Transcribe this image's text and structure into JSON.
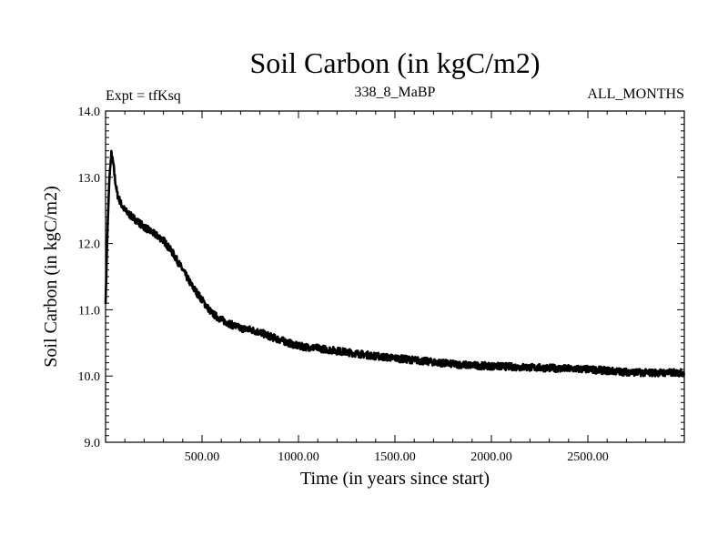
{
  "chart_data": {
    "type": "line",
    "title": "Soil Carbon (in kgC/m2)",
    "subtitle_left": "Expt = tfKsq",
    "subtitle_center": "338_8_MaBP",
    "subtitle_right": "ALL_MONTHS",
    "xlabel": "Time (in years since start)",
    "ylabel": "Soil Carbon (in kgC/m2)",
    "xlim": [
      0,
      3000
    ],
    "ylim": [
      9.0,
      14.0
    ],
    "x_ticks": [
      "500.00",
      "1000.00",
      "1500.00",
      "2000.00",
      "2500.00"
    ],
    "x_tick_values": [
      500,
      1000,
      1500,
      2000,
      2500
    ],
    "y_ticks": [
      "9.0",
      "10.0",
      "11.0",
      "12.0",
      "13.0",
      "14.0"
    ],
    "y_tick_values": [
      9.0,
      10.0,
      11.0,
      12.0,
      13.0,
      14.0
    ],
    "series": [
      {
        "name": "Soil Carbon",
        "color": "#000000",
        "x": [
          0,
          10,
          20,
          30,
          40,
          50,
          60,
          80,
          100,
          130,
          160,
          200,
          250,
          300,
          350,
          400,
          450,
          500,
          550,
          600,
          650,
          700,
          750,
          800,
          850,
          900,
          950,
          1000,
          1100,
          1200,
          1300,
          1400,
          1500,
          1600,
          1700,
          1800,
          1900,
          2000,
          2100,
          2200,
          2300,
          2400,
          2500,
          2600,
          2700,
          2800,
          2900,
          3000
        ],
        "values": [
          11.1,
          12.2,
          13.0,
          13.35,
          13.2,
          12.95,
          12.75,
          12.6,
          12.5,
          12.42,
          12.35,
          12.25,
          12.15,
          12.05,
          11.85,
          11.6,
          11.35,
          11.15,
          10.95,
          10.85,
          10.78,
          10.72,
          10.7,
          10.66,
          10.6,
          10.55,
          10.5,
          10.45,
          10.42,
          10.38,
          10.34,
          10.3,
          10.27,
          10.24,
          10.21,
          10.18,
          10.16,
          10.15,
          10.14,
          10.13,
          10.12,
          10.11,
          10.1,
          10.08,
          10.06,
          10.05,
          10.05,
          10.05
        ]
      }
    ]
  }
}
